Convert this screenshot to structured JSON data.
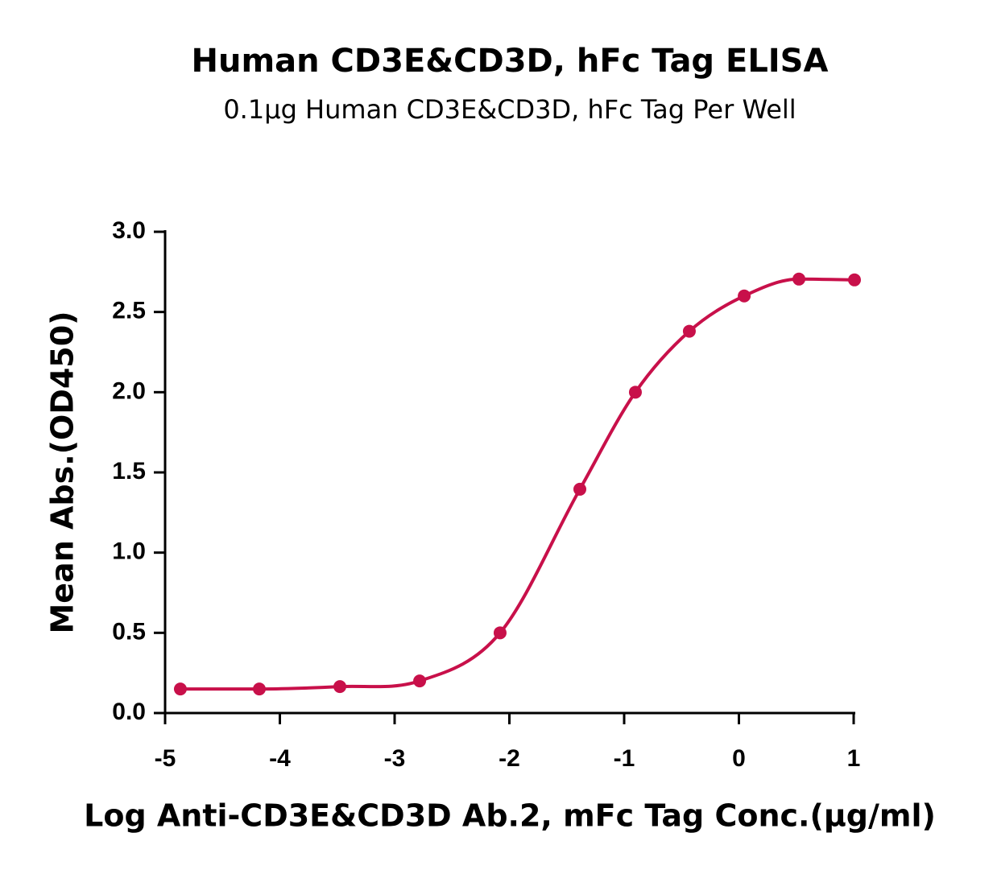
{
  "chart_data": {
    "type": "scatter",
    "title": "Human CD3E&CD3D, hFc Tag ELISA",
    "subtitle": "0.1μg Human CD3E&CD3D, hFc Tag Per Well",
    "x_label": "Log Anti-CD3E&CD3D Ab.2, mFc Tag Conc.(μg/ml)",
    "y_label": "Mean Abs.(OD450)",
    "xlim": [
      -5,
      1
    ],
    "xticks": [
      -5,
      -4,
      -3,
      -2,
      -1,
      0,
      1
    ],
    "ylim": [
      0,
      3
    ],
    "yticks": [
      {
        "value": 0,
        "label": "0.0"
      },
      {
        "value": 0.5,
        "label": "0.5"
      },
      {
        "value": 1,
        "label": "1.0"
      },
      {
        "value": 1.5,
        "label": "1.5"
      },
      {
        "value": 2,
        "label": "2.0"
      },
      {
        "value": 2.5,
        "label": "2.5"
      },
      {
        "value": 3,
        "label": "3.0"
      }
    ],
    "series": [
      {
        "color": "#c8104a",
        "x": [
          -4.867,
          -4.179,
          -3.477,
          -2.782,
          -2.081,
          -1.386,
          -0.902,
          -0.432,
          0.046,
          0.523,
          1.007
        ],
        "values": [
          0.15,
          0.15,
          0.165,
          0.2,
          0.5,
          1.395,
          2.0,
          2.38,
          2.6,
          2.705,
          2.7
        ]
      }
    ]
  }
}
